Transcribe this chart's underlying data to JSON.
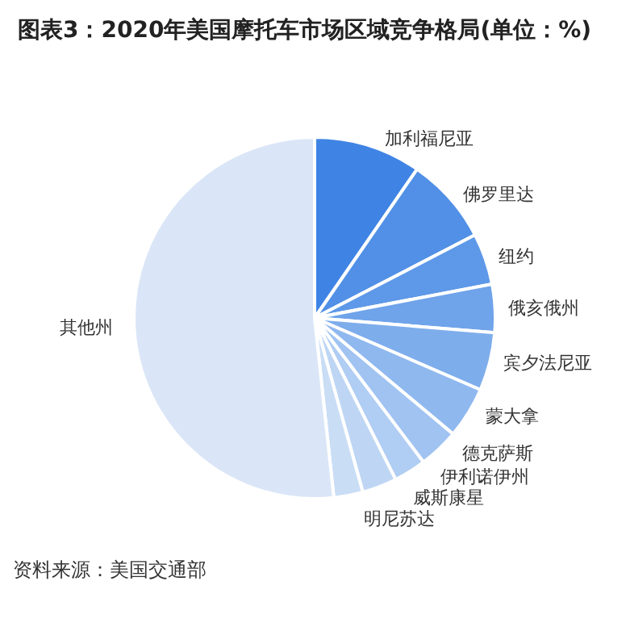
{
  "chart_data": {
    "type": "pie",
    "title": "图表3：2020年美国摩托车市场区域竞争格局(单位：%)",
    "categories": [
      "加利福尼亚",
      "佛罗里达",
      "纽约",
      "俄亥俄州",
      "宾夕法尼亚",
      "蒙大拿",
      "德克萨斯",
      "伊利诺伊州",
      "威斯康星",
      "明尼苏达",
      "其他州"
    ],
    "values": [
      9.6,
      7.8,
      4.6,
      4.3,
      5.2,
      4.6,
      3.6,
      2.9,
      3.1,
      2.6,
      51.7
    ],
    "colors": [
      "#3f84e5",
      "#5190e6",
      "#5e98e8",
      "#6fa3ea",
      "#7eadec",
      "#8fb8ef",
      "#a0c3f1",
      "#b0cdf3",
      "#bed6f4",
      "#c9ddf5",
      "#dae6f7"
    ],
    "annotations": [
      "资料来源：美国交通部"
    ],
    "legend": false
  }
}
